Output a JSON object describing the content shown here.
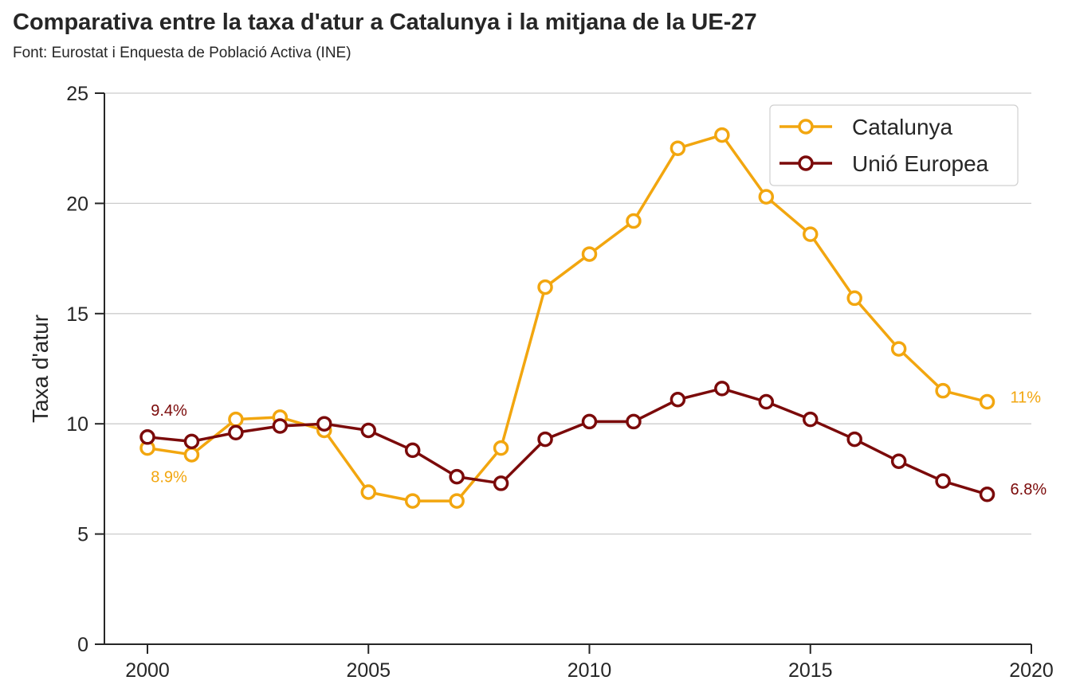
{
  "chart_data": {
    "type": "line",
    "title": "Comparativa entre la taxa d'atur a Catalunya i la mitjana de la UE-27",
    "subtitle": "Font: Eurostat i Enquesta de Població Activa (INE)",
    "xlabel": "",
    "ylabel": "Taxa d'atur",
    "xlim": [
      1999,
      2020
    ],
    "ylim": [
      0,
      25
    ],
    "xticks": [
      2000,
      2005,
      2010,
      2015,
      2020
    ],
    "yticks": [
      0,
      5,
      10,
      15,
      20,
      25
    ],
    "grid": "horizontal",
    "legend_position": "top-right",
    "x": [
      2000,
      2001,
      2002,
      2003,
      2004,
      2005,
      2006,
      2007,
      2008,
      2009,
      2010,
      2011,
      2012,
      2013,
      2014,
      2015,
      2016,
      2017,
      2018,
      2019
    ],
    "series": [
      {
        "name": "Catalunya",
        "color": "#F2A60F",
        "values": [
          8.9,
          8.6,
          10.2,
          10.3,
          9.7,
          6.9,
          6.5,
          6.5,
          8.9,
          16.2,
          17.7,
          19.2,
          22.5,
          23.1,
          20.3,
          18.6,
          15.7,
          13.4,
          11.5,
          11.0
        ]
      },
      {
        "name": "Unió Europea",
        "color": "#7B0A0A",
        "values": [
          9.4,
          9.2,
          9.6,
          9.9,
          10.0,
          9.7,
          8.8,
          7.6,
          7.3,
          9.3,
          10.1,
          10.1,
          11.1,
          11.6,
          11.0,
          10.2,
          9.3,
          8.3,
          7.4,
          6.8
        ]
      }
    ],
    "annotations": [
      {
        "text": "9.4%",
        "series": "Unió Europea",
        "x": 2000
      },
      {
        "text": "8.9%",
        "series": "Catalunya",
        "x": 2000
      },
      {
        "text": "11%",
        "series": "Catalunya",
        "x": 2019
      },
      {
        "text": "6.8%",
        "series": "Unió Europea",
        "x": 2019
      }
    ]
  }
}
